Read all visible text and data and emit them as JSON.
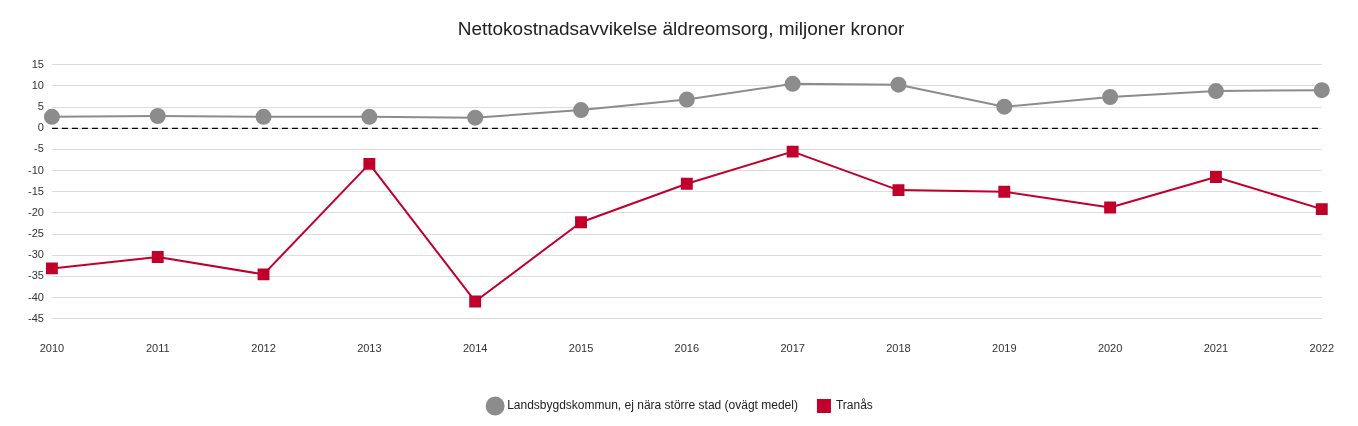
{
  "chart_data": {
    "type": "line",
    "title": "Nettokostnadsavvikelse äldreomsorg, miljoner kronor",
    "x": [
      2010,
      2011,
      2012,
      2013,
      2014,
      2015,
      2016,
      2017,
      2018,
      2019,
      2020,
      2021,
      2022
    ],
    "xlim": [
      2010,
      2022
    ],
    "xticks": [
      2010,
      2011,
      2012,
      2013,
      2014,
      2015,
      2016,
      2017,
      2018,
      2019,
      2020,
      2021,
      2022
    ],
    "ylim": [
      -45,
      15
    ],
    "yticks": [
      -45,
      -40,
      -35,
      -30,
      -25,
      -20,
      -15,
      -10,
      -5,
      0,
      5,
      10,
      15
    ],
    "grid": "y",
    "legend": "bottom",
    "ref_lines": [
      {
        "axis": "y",
        "value": 0,
        "line_style": "dashed",
        "color": "#000000"
      }
    ],
    "series": [
      {
        "name": "Landsbygdskommun, ej nära större stad (ovägt medel)",
        "color": "#8c8c8c",
        "marker": "circle",
        "values": [
          2.7,
          2.9,
          2.7,
          2.7,
          2.5,
          4.3,
          6.8,
          10.5,
          10.3,
          5.1,
          7.4,
          8.8,
          9.0
        ]
      },
      {
        "name": "Tranås",
        "color": "#c0002b",
        "marker": "square",
        "values": [
          -33.1,
          -30.4,
          -34.5,
          -8.4,
          -40.9,
          -22.2,
          -13.1,
          -5.5,
          -14.6,
          -15.0,
          -18.7,
          -11.5,
          -19.1
        ]
      }
    ]
  }
}
